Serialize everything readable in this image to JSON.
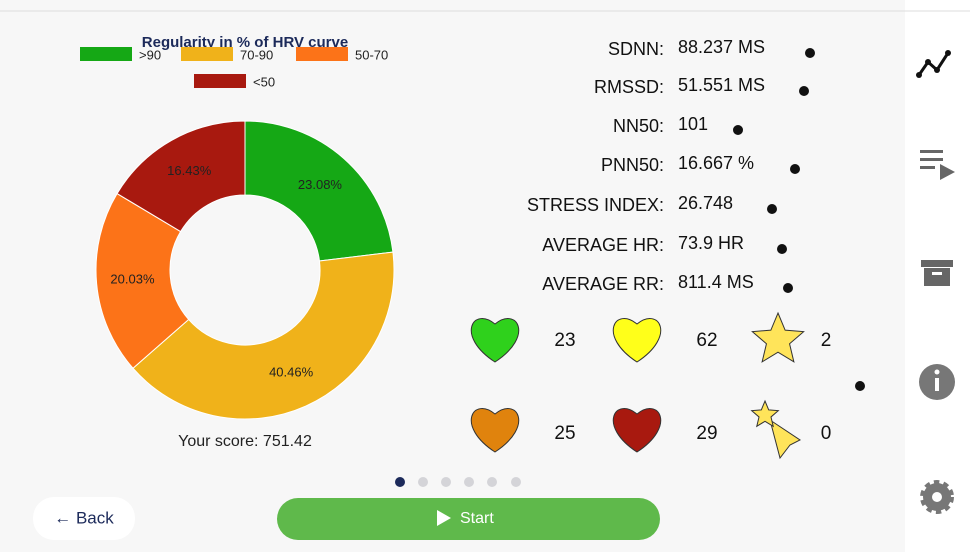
{
  "chart_data": {
    "type": "pie",
    "title": "Regularity in % of HRV curve",
    "categories": [
      ">90",
      "70-90",
      "50-70",
      "<50"
    ],
    "values": [
      23.08,
      40.46,
      20.03,
      16.43
    ],
    "value_labels": [
      "23.08%",
      "40.46%",
      "20.03%",
      "16.43%"
    ],
    "colors": [
      "#15a815",
      "#f0b21a",
      "#fc7318",
      "#a8190f"
    ]
  },
  "score": "Your score: 751.42",
  "stats": [
    {
      "label": "SDNN:",
      "value": "88.237 MS"
    },
    {
      "label": "RMSSD:",
      "value": "51.551 MS"
    },
    {
      "label": "NN50:",
      "value": "101"
    },
    {
      "label": "PNN50:",
      "value": "16.667 %"
    },
    {
      "label": "STRESS INDEX:",
      "value": "26.748"
    },
    {
      "label": "AVERAGE HR:",
      "value": "73.9 HR"
    },
    {
      "label": "AVERAGE RR:",
      "value": "811.4 MS"
    }
  ],
  "counts": [
    23,
    62,
    2,
    25,
    29,
    0
  ],
  "buttons": {
    "back": "← Back",
    "start": "Start"
  }
}
